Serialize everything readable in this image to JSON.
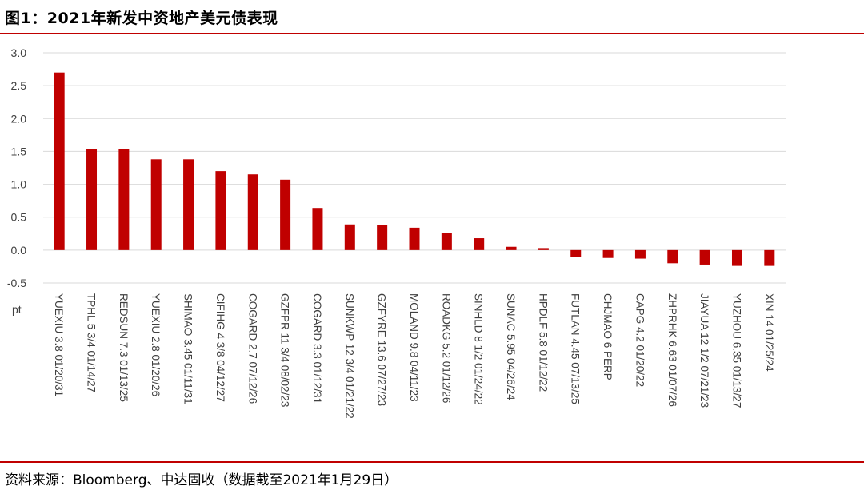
{
  "header": {
    "title": "图1：2021年新发中资地产美元债表现"
  },
  "footer": {
    "source": "资料来源：Bloomberg、中达固收（数据截至2021年1月29日）"
  },
  "colors": {
    "bar": "#c00000",
    "rule": "#c00000",
    "grid": "#d9d9d9"
  },
  "chart_data": {
    "type": "bar",
    "title": "图1：2021年新发中资地产美元债表现",
    "ylabel": "pt",
    "xlabel": "",
    "ylim": [
      -0.5,
      3.0
    ],
    "yticks": [
      3.0,
      2.5,
      2.0,
      1.5,
      1.0,
      0.5,
      0.0,
      -0.5
    ],
    "ytick_labels": [
      "3.0",
      "2.5",
      "2.0",
      "1.5",
      "1.0",
      "0.5",
      "0.0",
      "-0.5"
    ],
    "grid": true,
    "categories": [
      "YUEXIU 3.8 01/20/31",
      "TPHL 5 3/4 01/14/27",
      "REDSUN 7.3 01/13/25",
      "YUEXIU 2.8 01/20/26",
      "SHIMAO 3.45 01/11/31",
      "CIFIHG 4 3/8 04/12/27",
      "COGARD 2.7 07/12/26",
      "GZFPR 11 3/4 08/02/23",
      "COGARD 3.3 01/12/31",
      "SUNKWP 12 3/4 01/21/22",
      "GZFYRE 13.6 07/27/23",
      "MOLAND 9.8 04/11/23",
      "ROADKG 5.2 01/12/26",
      "SINHLD 8 1/2 01/24/22",
      "SUNAC 5.95 04/26/24",
      "HPDLF 5.8 01/12/22",
      "FUTLAN 4.45 07/13/25",
      "CHJMAO 6 PERP",
      "CAPG 4.2 01/20/22",
      "ZHPRHK 6.63 01/07/26",
      "JIAYUA 12 1/2 07/21/23",
      "YUZHOU 6.35 01/13/27",
      "XIN 14 01/25/24"
    ],
    "values": [
      2.7,
      1.54,
      1.53,
      1.38,
      1.38,
      1.2,
      1.15,
      1.07,
      0.64,
      0.39,
      0.38,
      0.34,
      0.26,
      0.18,
      0.05,
      0.03,
      -0.1,
      -0.12,
      -0.13,
      -0.2,
      -0.22,
      -0.24,
      -0.24
    ]
  }
}
